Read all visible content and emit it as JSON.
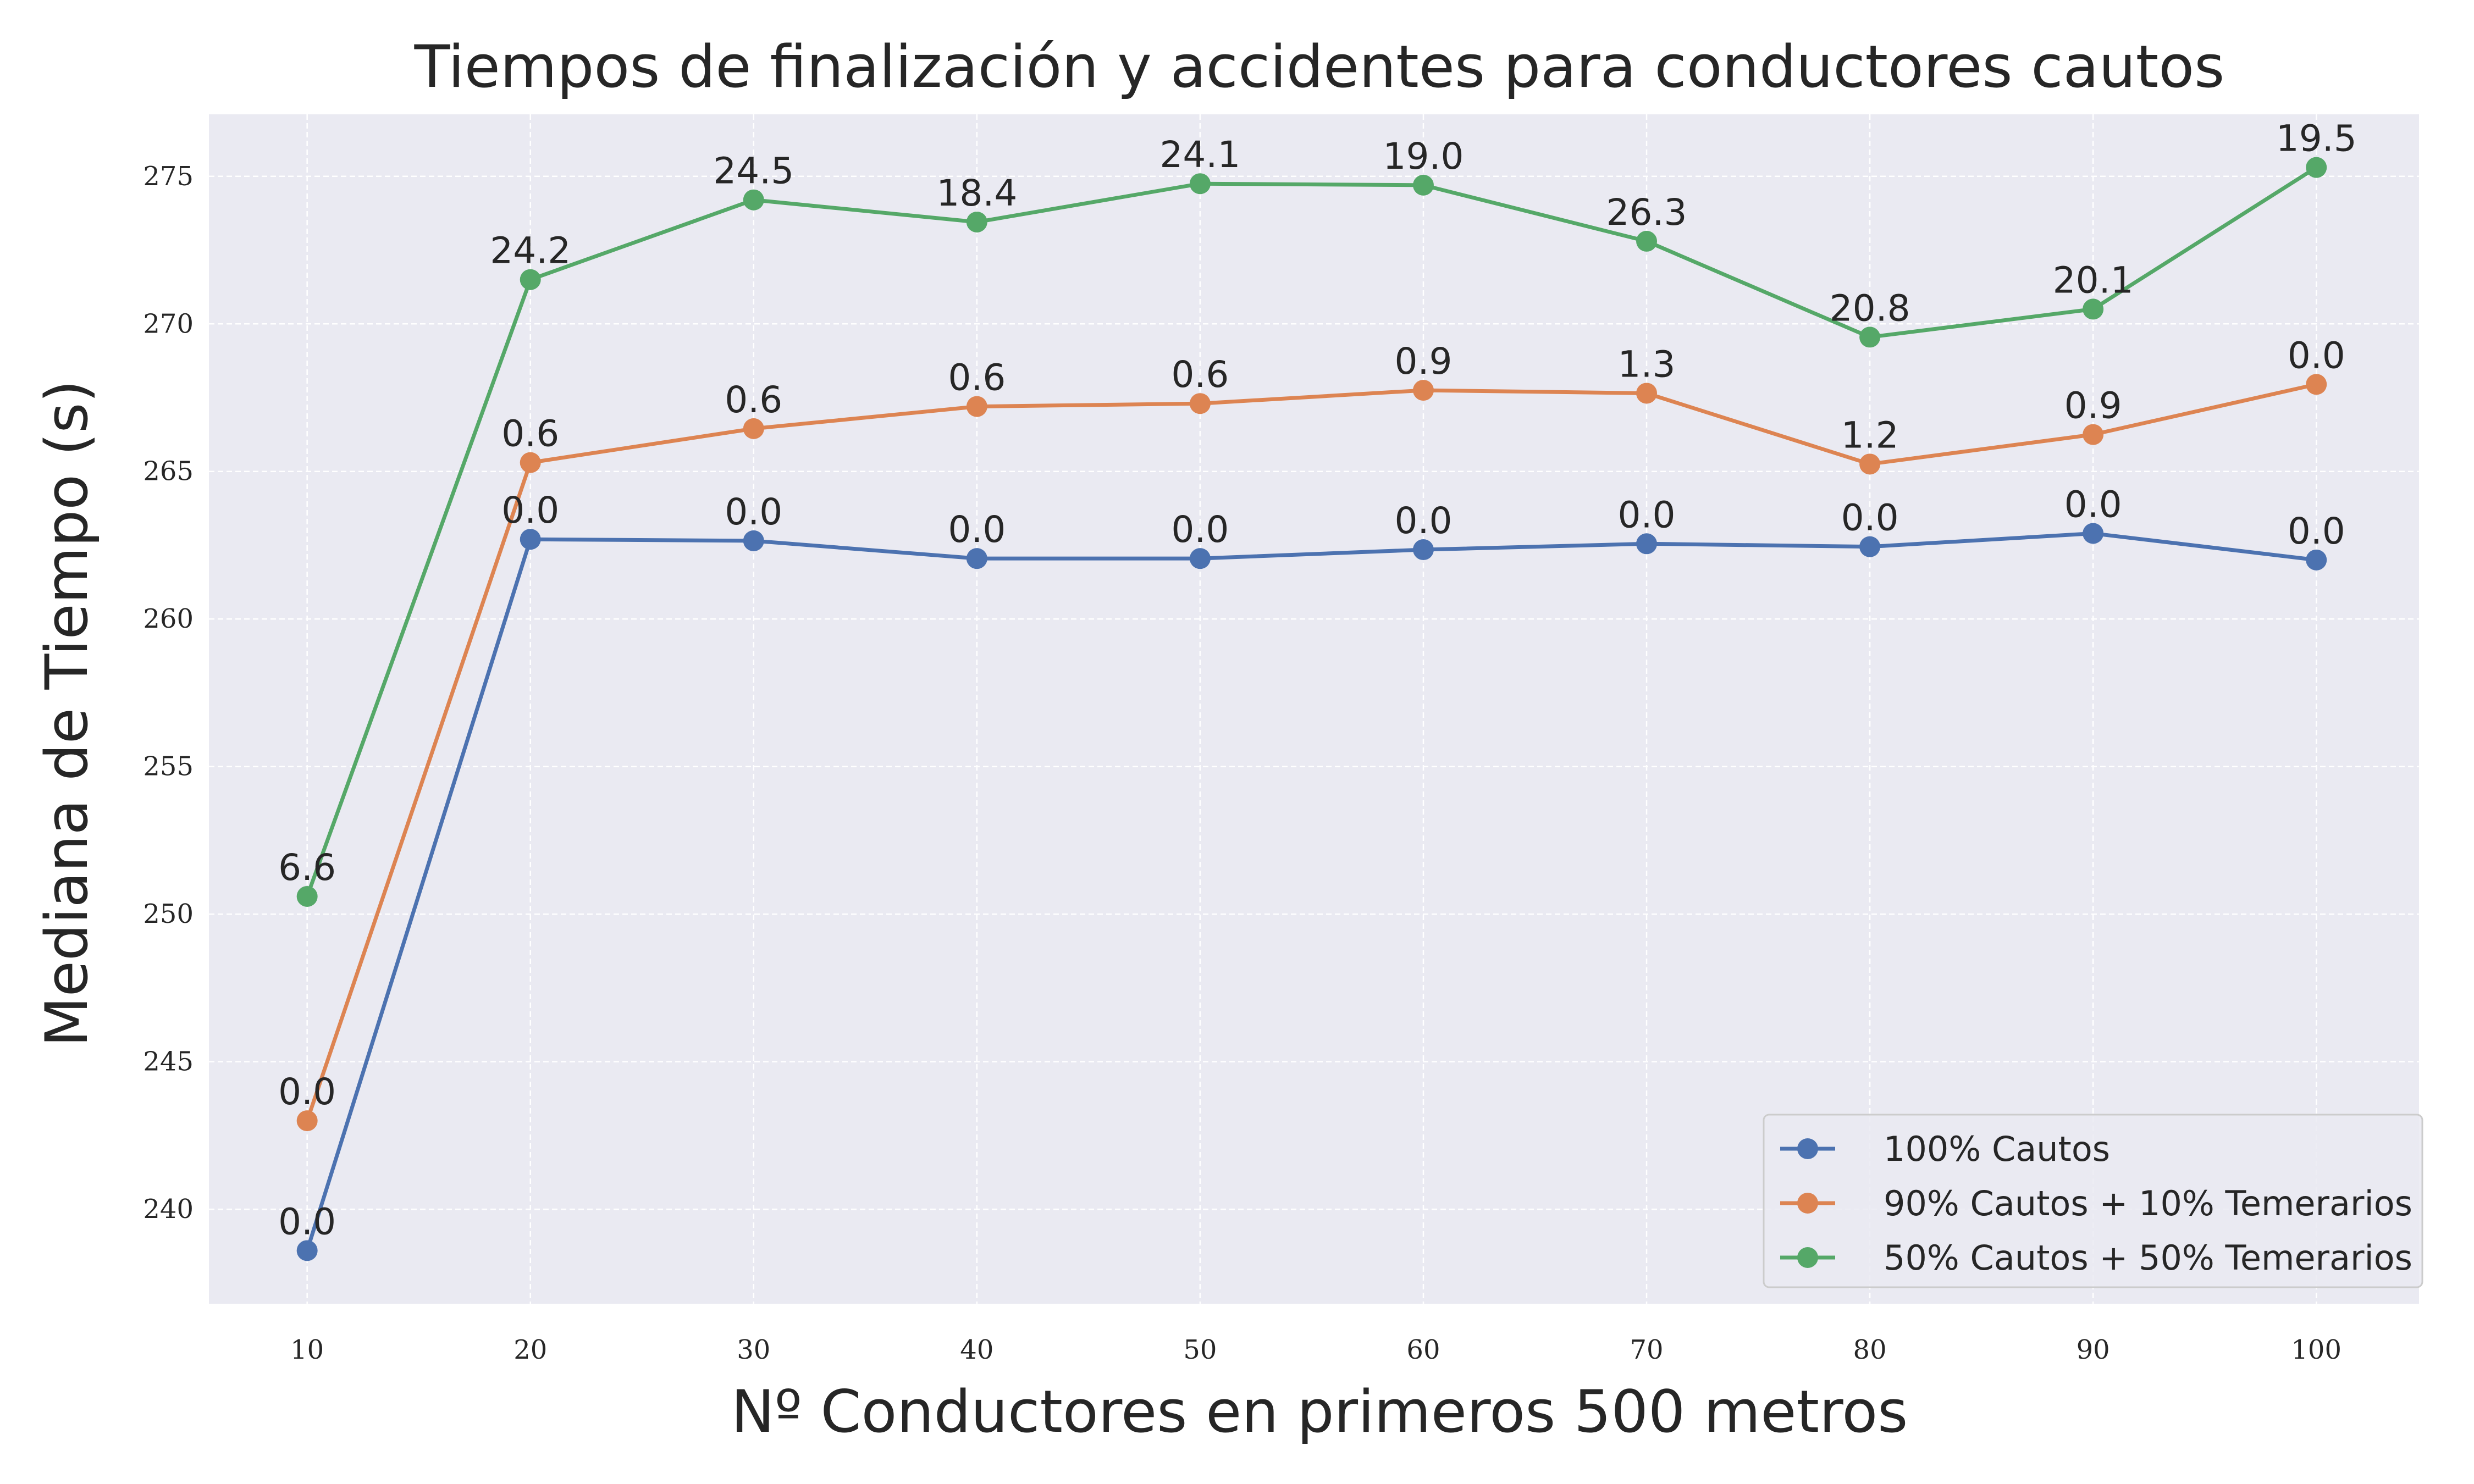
{
  "chart_data": {
    "type": "line",
    "title": "Tiempos de finalización y accidentes para conductores cautos",
    "xlabel": "Nº Conductores en primeros 500 metros",
    "ylabel": "Mediana de Tiempo (s)",
    "x": [
      10,
      20,
      30,
      40,
      50,
      60,
      70,
      80,
      90,
      100
    ],
    "x_tick_labels": [
      "10",
      "20",
      "30",
      "40",
      "50",
      "60",
      "70",
      "80",
      "90",
      "100"
    ],
    "y_ticks": [
      240,
      245,
      250,
      255,
      260,
      265,
      270,
      275
    ],
    "y_tick_labels": [
      "240",
      "245",
      "250",
      "255",
      "260",
      "265",
      "270",
      "275"
    ],
    "xlim": [
      5.6,
      104.6
    ],
    "ylim": [
      236.8,
      277.1
    ],
    "grid": true,
    "legend_position": "bottom-right",
    "series": [
      {
        "name": "100% Cautos",
        "color": "#4c72b0",
        "values": [
          238.6,
          262.7,
          262.65,
          262.05,
          262.05,
          262.35,
          262.55,
          262.45,
          262.9,
          262.0
        ],
        "labels": [
          "0.0",
          "0.0",
          "0.0",
          "0.0",
          "0.0",
          "0.0",
          "0.0",
          "0.0",
          "0.0",
          "0.0"
        ]
      },
      {
        "name": "90% Cautos + 10% Temerarios",
        "color": "#dd8452",
        "values": [
          243.0,
          265.3,
          266.45,
          267.2,
          267.3,
          267.75,
          267.65,
          265.25,
          266.25,
          267.95
        ],
        "labels": [
          "0.0",
          "0.6",
          "0.6",
          "0.6",
          "0.6",
          "0.9",
          "1.3",
          "1.2",
          "0.9",
          "0.0"
        ]
      },
      {
        "name": "50% Cautos + 50% Temerarios",
        "color": "#55a868",
        "values": [
          250.6,
          271.5,
          274.2,
          273.45,
          274.75,
          274.7,
          272.8,
          269.55,
          270.5,
          275.3
        ],
        "labels": [
          "6.6",
          "24.2",
          "24.5",
          "18.4",
          "24.1",
          "19.0",
          "26.3",
          "20.8",
          "20.1",
          "19.5"
        ]
      }
    ]
  },
  "colors": {
    "plot_background": "#eaeaf2",
    "grid": "#ffffff",
    "text": "#262626"
  }
}
